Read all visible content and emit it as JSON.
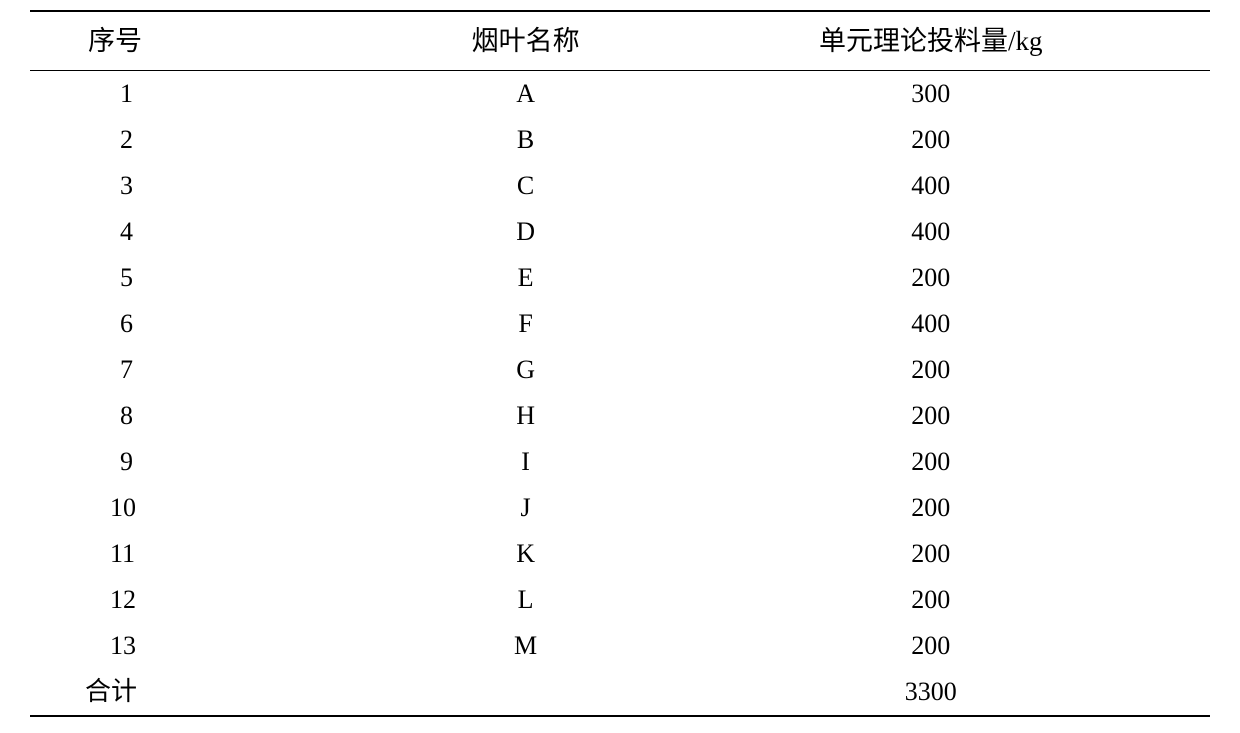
{
  "table": {
    "headers": {
      "index": "序号",
      "name": "烟叶名称",
      "amount": "单元理论投料量/kg"
    },
    "rows": [
      {
        "index": "1",
        "name": "A",
        "amount": "300"
      },
      {
        "index": "2",
        "name": "B",
        "amount": "200"
      },
      {
        "index": "3",
        "name": "C",
        "amount": "400"
      },
      {
        "index": "4",
        "name": "D",
        "amount": "400"
      },
      {
        "index": "5",
        "name": "E",
        "amount": "200"
      },
      {
        "index": "6",
        "name": "F",
        "amount": "400"
      },
      {
        "index": "7",
        "name": "G",
        "amount": "200"
      },
      {
        "index": "8",
        "name": "H",
        "amount": "200"
      },
      {
        "index": "9",
        "name": "I",
        "amount": "200"
      },
      {
        "index": "10",
        "name": "J",
        "amount": "200"
      },
      {
        "index": "11",
        "name": "K",
        "amount": "200"
      },
      {
        "index": "12",
        "name": "L",
        "amount": "200"
      },
      {
        "index": "13",
        "name": "M",
        "amount": "200"
      }
    ],
    "total": {
      "label": "合计",
      "amount": "3300"
    },
    "styling": {
      "border_color": "#000000",
      "background_color": "#ffffff",
      "text_color": "#000000",
      "header_fontsize": 27,
      "body_fontsize": 26,
      "top_border_width": 2.5,
      "header_bottom_border_width": 1.5,
      "bottom_border_width": 2.5,
      "font_family_cjk": "SimSun",
      "font_family_latin": "Times New Roman",
      "column_alignment": [
        "center",
        "center",
        "center"
      ]
    }
  }
}
